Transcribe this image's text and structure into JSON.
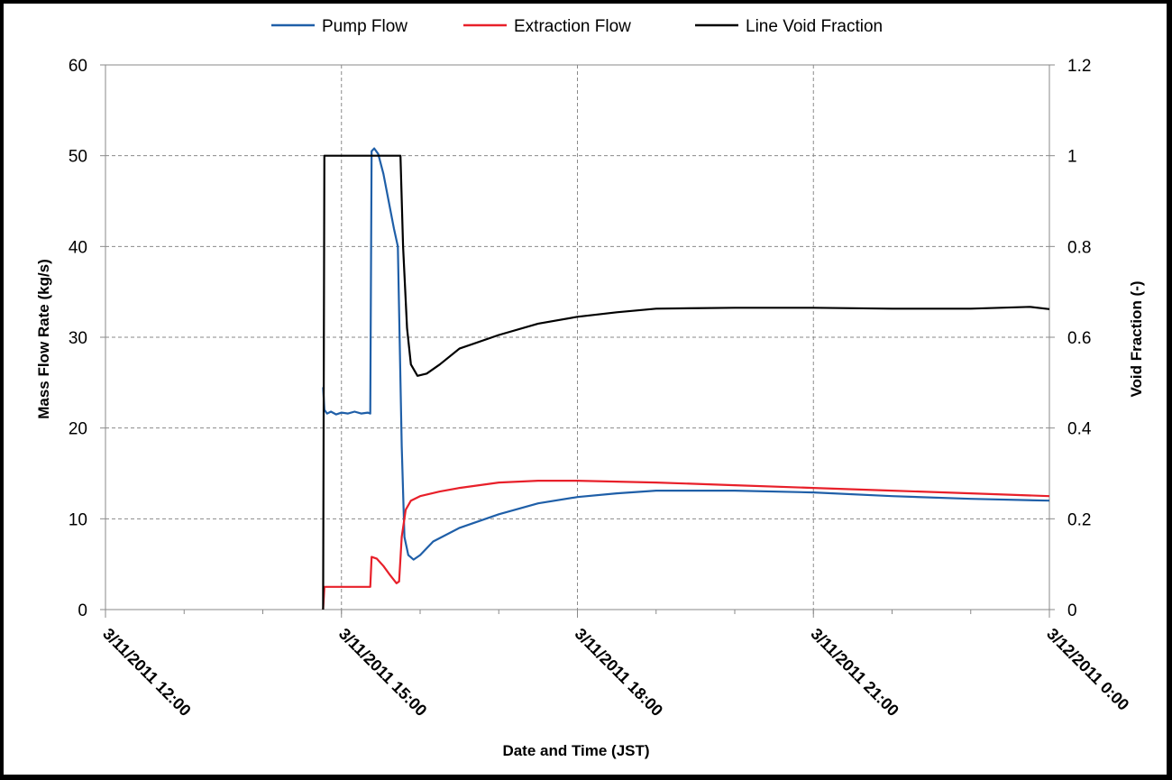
{
  "chart_data": {
    "type": "line",
    "xlabel": "Date and Time (JST)",
    "ylabel": "Mass Flow Rate (kg/s)",
    "y2label": "Void Fraction (-)",
    "xlim": [
      "3/11/2011 12:00",
      "3/12/2011 0:00"
    ],
    "x_ticks": [
      "3/11/2011 12:00",
      "3/11/2011 15:00",
      "3/11/2011 18:00",
      "3/11/2011 21:00",
      "3/12/2011 0:00"
    ],
    "ylim": [
      0,
      60
    ],
    "y_ticks": [
      "0",
      "10",
      "20",
      "30",
      "40",
      "50",
      "60"
    ],
    "y2lim": [
      0,
      1.2
    ],
    "y2_ticks": [
      "0",
      "0.2",
      "0.4",
      "0.6",
      "0.8",
      "1",
      "1.2"
    ],
    "grid": true,
    "legend_position": "top",
    "series": [
      {
        "name": "Pump Flow",
        "axis": "left",
        "color": "#1f5fa8",
        "points": [
          [
            "3/11/2011 14:46",
            24.5
          ],
          [
            "3/11/2011 14:47",
            22.0
          ],
          [
            "3/11/2011 14:49",
            21.6
          ],
          [
            "3/11/2011 14:52",
            21.8
          ],
          [
            "3/11/2011 14:56",
            21.5
          ],
          [
            "3/11/2011 15:00",
            21.7
          ],
          [
            "3/11/2011 15:05",
            21.6
          ],
          [
            "3/11/2011 15:10",
            21.8
          ],
          [
            "3/11/2011 15:15",
            21.6
          ],
          [
            "3/11/2011 15:20",
            21.7
          ],
          [
            "3/11/2011 15:22",
            21.6
          ],
          [
            "3/11/2011 15:23",
            50.5
          ],
          [
            "3/11/2011 15:25",
            50.8
          ],
          [
            "3/11/2011 15:28",
            50.2
          ],
          [
            "3/11/2011 15:32",
            48.0
          ],
          [
            "3/11/2011 15:36",
            45.0
          ],
          [
            "3/11/2011 15:40",
            42.0
          ],
          [
            "3/11/2011 15:43",
            40.0
          ],
          [
            "3/11/2011 15:46",
            18.0
          ],
          [
            "3/11/2011 15:48",
            8.0
          ],
          [
            "3/11/2011 15:51",
            6.0
          ],
          [
            "3/11/2011 15:55",
            5.5
          ],
          [
            "3/11/2011 16:00",
            6.0
          ],
          [
            "3/11/2011 16:10",
            7.5
          ],
          [
            "3/11/2011 16:30",
            9.0
          ],
          [
            "3/11/2011 17:00",
            10.5
          ],
          [
            "3/11/2011 17:30",
            11.7
          ],
          [
            "3/11/2011 18:00",
            12.4
          ],
          [
            "3/11/2011 18:30",
            12.8
          ],
          [
            "3/11/2011 19:00",
            13.1
          ],
          [
            "3/11/2011 20:00",
            13.1
          ],
          [
            "3/11/2011 21:00",
            12.9
          ],
          [
            "3/11/2011 22:00",
            12.5
          ],
          [
            "3/11/2011 23:00",
            12.2
          ],
          [
            "3/12/2011 0:00",
            12.0
          ]
        ]
      },
      {
        "name": "Extraction Flow",
        "axis": "left",
        "color": "#e8202a",
        "points": [
          [
            "3/11/2011 14:46",
            0.0
          ],
          [
            "3/11/2011 14:47",
            2.5
          ],
          [
            "3/11/2011 15:22",
            2.5
          ],
          [
            "3/11/2011 15:23",
            5.8
          ],
          [
            "3/11/2011 15:27",
            5.6
          ],
          [
            "3/11/2011 15:32",
            4.8
          ],
          [
            "3/11/2011 15:37",
            3.8
          ],
          [
            "3/11/2011 15:42",
            2.9
          ],
          [
            "3/11/2011 15:44",
            3.1
          ],
          [
            "3/11/2011 15:46",
            8.0
          ],
          [
            "3/11/2011 15:49",
            11.0
          ],
          [
            "3/11/2011 15:53",
            12.0
          ],
          [
            "3/11/2011 16:00",
            12.5
          ],
          [
            "3/11/2011 16:15",
            13.0
          ],
          [
            "3/11/2011 16:30",
            13.4
          ],
          [
            "3/11/2011 17:00",
            14.0
          ],
          [
            "3/11/2011 17:30",
            14.2
          ],
          [
            "3/11/2011 18:00",
            14.2
          ],
          [
            "3/11/2011 19:00",
            14.0
          ],
          [
            "3/11/2011 20:00",
            13.7
          ],
          [
            "3/11/2011 21:00",
            13.4
          ],
          [
            "3/11/2011 22:00",
            13.1
          ],
          [
            "3/11/2011 23:00",
            12.8
          ],
          [
            "3/12/2011 0:00",
            12.5
          ]
        ]
      },
      {
        "name": "Line Void Fraction",
        "axis": "right",
        "color": "#000000",
        "points": [
          [
            "3/11/2011 14:46",
            0.0
          ],
          [
            "3/11/2011 14:47",
            1.0
          ],
          [
            "3/11/2011 15:45",
            1.0
          ],
          [
            "3/11/2011 15:47",
            0.8
          ],
          [
            "3/11/2011 15:50",
            0.62
          ],
          [
            "3/11/2011 15:53",
            0.54
          ],
          [
            "3/11/2011 15:58",
            0.515
          ],
          [
            "3/11/2011 16:05",
            0.52
          ],
          [
            "3/11/2011 16:15",
            0.54
          ],
          [
            "3/11/2011 16:30",
            0.575
          ],
          [
            "3/11/2011 17:00",
            0.605
          ],
          [
            "3/11/2011 17:30",
            0.63
          ],
          [
            "3/11/2011 18:00",
            0.645
          ],
          [
            "3/11/2011 18:30",
            0.655
          ],
          [
            "3/11/2011 19:00",
            0.663
          ],
          [
            "3/11/2011 20:00",
            0.665
          ],
          [
            "3/11/2011 21:00",
            0.665
          ],
          [
            "3/11/2011 22:00",
            0.663
          ],
          [
            "3/11/2011 23:00",
            0.663
          ],
          [
            "3/11/2011 23:45",
            0.667
          ],
          [
            "3/12/2011 0:00",
            0.662
          ]
        ]
      }
    ]
  }
}
